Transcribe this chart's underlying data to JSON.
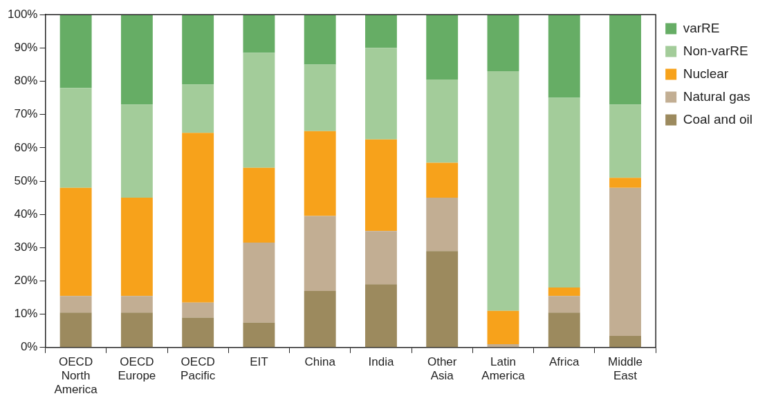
{
  "chart_data": {
    "type": "bar",
    "stacked": true,
    "categories": [
      "OECD North America",
      "OECD Europe",
      "OECD Pacific",
      "EIT",
      "China",
      "India",
      "Other Asia",
      "Latin America",
      "Africa",
      "Middle East"
    ],
    "series": [
      {
        "name": "Coal and oil",
        "color": "#9c8a5e",
        "values": [
          10.5,
          10.5,
          9,
          7.5,
          17,
          19,
          29,
          0,
          10.5,
          3.5
        ]
      },
      {
        "name": "Natural gas",
        "color": "#c2ae93",
        "values": [
          5,
          5,
          4.5,
          24,
          22.5,
          16,
          16,
          1,
          5,
          44.5
        ]
      },
      {
        "name": "Nuclear",
        "color": "#f7a21b",
        "values": [
          32.5,
          29.5,
          51,
          22.5,
          25.5,
          27.5,
          10.5,
          10,
          2.5,
          3
        ]
      },
      {
        "name": "Non-varRE",
        "color": "#a3cc9a",
        "values": [
          30,
          28,
          14.5,
          34.5,
          20,
          27.5,
          25,
          72,
          57,
          22
        ]
      },
      {
        "name": "varRE",
        "color": "#66ad65",
        "values": [
          22,
          27,
          21,
          11.5,
          15,
          10,
          19.5,
          17,
          25,
          27
        ]
      }
    ],
    "ylim": [
      0,
      100
    ],
    "yticks": [
      {
        "value": 0,
        "label": "0%"
      },
      {
        "value": 10,
        "label": "10%"
      },
      {
        "value": 20,
        "label": "20%"
      },
      {
        "value": 30,
        "label": "30%"
      },
      {
        "value": 40,
        "label": "40%"
      },
      {
        "value": 50,
        "label": "50%"
      },
      {
        "value": 60,
        "label": "60%"
      },
      {
        "value": 70,
        "label": "70%"
      },
      {
        "value": 80,
        "label": "80%"
      },
      {
        "value": 90,
        "label": "90%"
      },
      {
        "value": 100,
        "label": "100%"
      }
    ],
    "grid": false,
    "legend": "right"
  }
}
